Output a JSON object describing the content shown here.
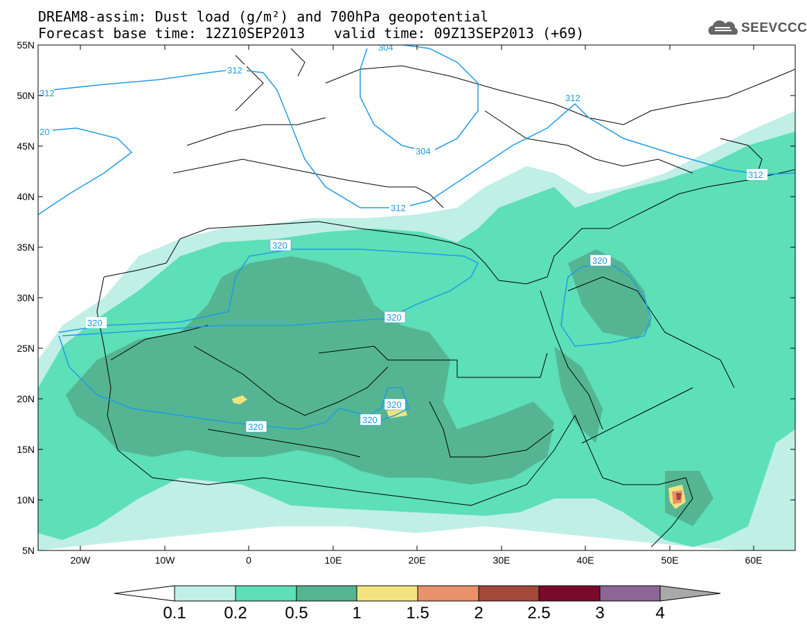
{
  "title": {
    "line1": "DREAM8-assim: Dust load (g/m²) and 700hPa geopotential",
    "line2": "Forecast base time: 12Z10SEP2013",
    "line2b": "valid time: 09Z13SEP2013 (+69)"
  },
  "logo": {
    "text": "SEEVCCC",
    "icon": "cloud-logo-icon"
  },
  "axes": {
    "lat_labels": [
      "55N",
      "50N",
      "45N",
      "40N",
      "35N",
      "30N",
      "25N",
      "20N",
      "15N",
      "10N",
      "5N"
    ],
    "lon_labels": [
      "20W",
      "10W",
      "0",
      "10E",
      "20E",
      "30E",
      "40E",
      "50E",
      "60E"
    ]
  },
  "contours": {
    "labels": [
      "312",
      "312",
      "312",
      "312",
      "20",
      "304",
      "304",
      "312",
      "312",
      "320",
      "320",
      "320",
      "320",
      "320",
      "320",
      "320"
    ]
  },
  "colorbar": {
    "labels": [
      "0.1",
      "0.2",
      "0.5",
      "1",
      "1.5",
      "2",
      "2.5",
      "3",
      "4"
    ],
    "colors": [
      "#ffffff",
      "#c0efe6",
      "#5ddfb8",
      "#55b592",
      "#f2e37f",
      "#e8916a",
      "#a4483c",
      "#7a0a2c",
      "#8b6696",
      "#a9a9a9"
    ]
  }
}
